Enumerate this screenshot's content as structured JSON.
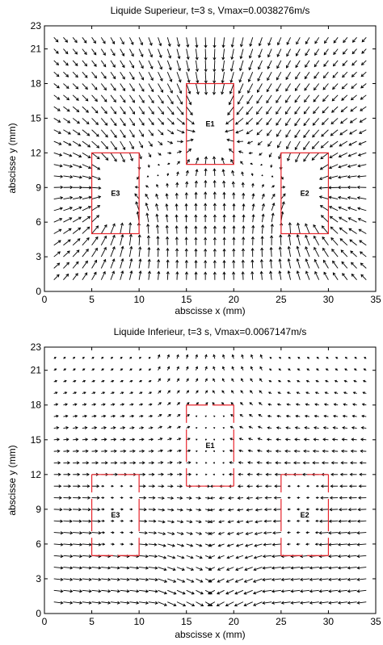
{
  "chart_data": [
    {
      "type": "quiver",
      "title": "Liquide Superieur, t=3 s, Vmax=0.0038276m/s",
      "xlabel": "abscisse x (mm)",
      "ylabel": "abscisse y (mm)",
      "xlim": [
        0,
        35
      ],
      "ylim": [
        0,
        23
      ],
      "xticks": [
        "0",
        "5",
        "10",
        "15",
        "20",
        "25",
        "30",
        "35"
      ],
      "yticks": [
        "0",
        "3",
        "6",
        "9",
        "12",
        "15",
        "18",
        "21",
        "23"
      ],
      "field": "radial_to_electrodes",
      "grid_step_mm": 1,
      "electrodes": [
        {
          "label": "E1",
          "x": [
            15,
            20
          ],
          "y": [
            11,
            18
          ]
        },
        {
          "label": "E2",
          "x": [
            25,
            30
          ],
          "y": [
            5,
            12
          ]
        },
        {
          "label": "E3",
          "x": [
            5,
            10
          ],
          "y": [
            5,
            12
          ]
        }
      ],
      "colors": {
        "arrows": "#000000",
        "electrodes": "#e8242b"
      }
    },
    {
      "type": "quiver",
      "title": "Liquide Inferieur, t=3 s, Vmax=0.0067147m/s",
      "xlabel": "abscisse x (mm)",
      "ylabel": "abscisse y (mm)",
      "xlim": [
        0,
        35
      ],
      "ylim": [
        0,
        23
      ],
      "xticks": [
        "0",
        "5",
        "10",
        "15",
        "20",
        "25",
        "30",
        "35"
      ],
      "yticks": [
        "0",
        "3",
        "6",
        "9",
        "12",
        "15",
        "18",
        "21",
        "23"
      ],
      "field": "horizontal_flow",
      "grid_step_mm": 1,
      "electrodes": [
        {
          "label": "E1",
          "x": [
            15,
            20
          ],
          "y": [
            11,
            18
          ]
        },
        {
          "label": "E2",
          "x": [
            25,
            30
          ],
          "y": [
            5,
            12
          ]
        },
        {
          "label": "E3",
          "x": [
            5,
            10
          ],
          "y": [
            5,
            12
          ]
        }
      ],
      "colors": {
        "arrows": "#000000",
        "electrodes": "#e8242b"
      }
    }
  ]
}
